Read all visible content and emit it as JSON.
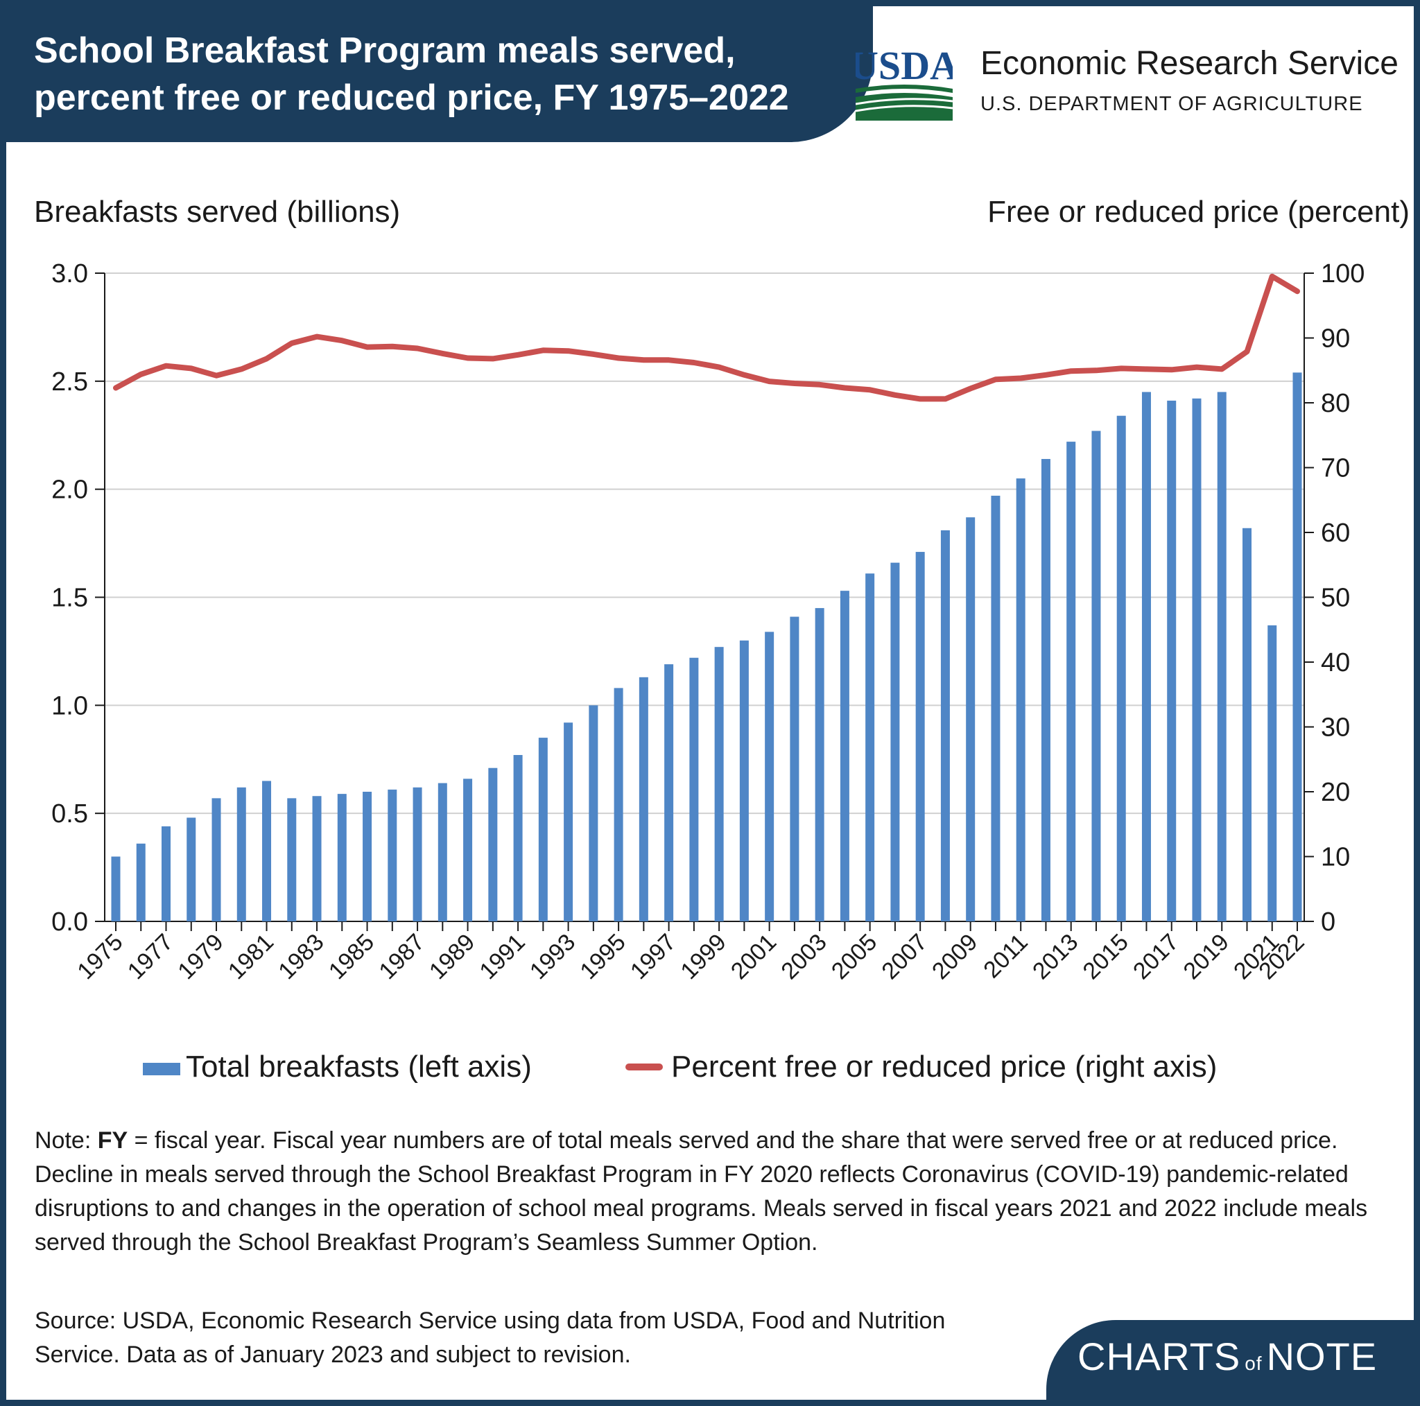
{
  "header": {
    "title": "School Breakfast Program meals served,\npercent free or reduced price, FY 1975–2022",
    "agency_name": "Economic Research Service",
    "agency_dept": "U.S. DEPARTMENT OF AGRICULTURE",
    "logo_text": "USDA"
  },
  "axes": {
    "left_title": "Breakfasts served (billions)",
    "right_title": "Free or reduced price (percent)"
  },
  "legend": {
    "bar_label": "Total breakfasts (left axis)",
    "line_label": "Percent free or reduced price (right axis)"
  },
  "note": {
    "prefix": "Note: ",
    "fy": "FY",
    "text": " = fiscal year. Fiscal year numbers are of total meals served and the share that were served free or at reduced price. Decline in meals served through the School Breakfast Program in FY 2020 reflects Coronavirus (COVID-19) pandemic-related disruptions to and changes in the operation of school meal programs. Meals served in fiscal years 2021 and 2022 include meals served through the School Breakfast Program’s Seamless Summer Option."
  },
  "source": "Source: USDA, Economic Research Service using data from USDA, Food and Nutrition Service. Data as of January 2023 and subject to revision.",
  "footer": {
    "charts": "CHARTS",
    "of": "of",
    "note": "NOTE"
  },
  "colors": {
    "bar": "#4f86c6",
    "line": "#c9504f",
    "navy": "#1b3d5c",
    "grid": "#d0d0d0"
  },
  "chart_data": {
    "type": "bar",
    "title": "School Breakfast Program meals served, percent free or reduced price, FY 1975–2022",
    "categories": [
      1975,
      1976,
      1977,
      1978,
      1979,
      1980,
      1981,
      1982,
      1983,
      1984,
      1985,
      1986,
      1987,
      1988,
      1989,
      1990,
      1991,
      1992,
      1993,
      1994,
      1995,
      1996,
      1997,
      1998,
      1999,
      2000,
      2001,
      2002,
      2003,
      2004,
      2005,
      2006,
      2007,
      2008,
      2009,
      2010,
      2011,
      2012,
      2013,
      2014,
      2015,
      2016,
      2017,
      2018,
      2019,
      2020,
      2021,
      2022
    ],
    "x_tick_labels": [
      "1975",
      "1977",
      "1979",
      "1981",
      "1983",
      "1985",
      "1987",
      "1989",
      "1991",
      "1993",
      "1995",
      "1997",
      "1999",
      "2001",
      "2003",
      "2005",
      "2007",
      "2009",
      "2011",
      "2013",
      "2015",
      "2017",
      "2019",
      "2021",
      "2022"
    ],
    "series": [
      {
        "name": "Total breakfasts (left axis)",
        "type": "bar",
        "axis": "left",
        "values": [
          0.3,
          0.36,
          0.44,
          0.48,
          0.57,
          0.62,
          0.65,
          0.57,
          0.58,
          0.59,
          0.6,
          0.61,
          0.62,
          0.64,
          0.66,
          0.71,
          0.77,
          0.85,
          0.92,
          1.0,
          1.08,
          1.13,
          1.19,
          1.22,
          1.27,
          1.3,
          1.34,
          1.41,
          1.45,
          1.53,
          1.61,
          1.66,
          1.71,
          1.81,
          1.87,
          1.97,
          2.05,
          2.14,
          2.22,
          2.27,
          2.34,
          2.45,
          2.41,
          2.42,
          2.45,
          1.82,
          1.37,
          2.54
        ]
      },
      {
        "name": "Percent free or reduced price (right axis)",
        "type": "line",
        "axis": "right",
        "values": [
          82.3,
          84.4,
          85.7,
          85.3,
          84.2,
          85.2,
          86.8,
          89.2,
          90.2,
          89.6,
          88.6,
          88.7,
          88.4,
          87.6,
          86.9,
          86.8,
          87.4,
          88.1,
          88.0,
          87.5,
          86.9,
          86.6,
          86.6,
          86.2,
          85.5,
          84.3,
          83.3,
          83.0,
          82.8,
          82.3,
          82.0,
          81.2,
          80.6,
          80.6,
          82.2,
          83.6,
          83.8,
          84.3,
          84.9,
          85.0,
          85.3,
          85.2,
          85.1,
          85.5,
          85.2,
          87.9,
          99.5,
          97.2
        ]
      }
    ],
    "ylabel": "Breakfasts served (billions)",
    "ylabel_right": "Free or reduced price (percent)",
    "ylim": [
      0,
      3.0
    ],
    "ylim_right": [
      0,
      100
    ],
    "y_ticks": [
      "0.0",
      "0.5",
      "1.0",
      "1.5",
      "2.0",
      "2.5",
      "3.0"
    ],
    "y_ticks_right": [
      "0",
      "10",
      "20",
      "30",
      "40",
      "50",
      "60",
      "70",
      "80",
      "90",
      "100"
    ],
    "grid": true,
    "legend_position": "bottom"
  }
}
